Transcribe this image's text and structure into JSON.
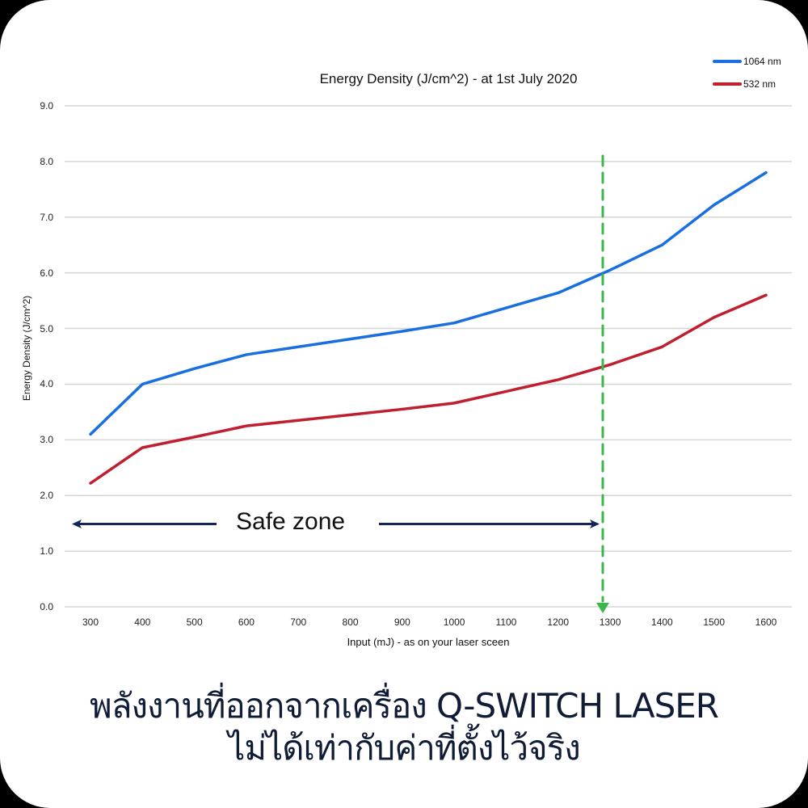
{
  "chart_data": {
    "type": "line",
    "title": "Energy Density (J/cm^2) - at 1st July 2020",
    "xlabel": "Input (mJ) - as on your laser sceen",
    "ylabel": "Energy Density (J/cm^2)",
    "x": [
      300,
      400,
      500,
      600,
      700,
      800,
      900,
      1000,
      1100,
      1200,
      1300,
      1400,
      1500,
      1600
    ],
    "categories": [
      "300",
      "400",
      "500",
      "600",
      "700",
      "800",
      "900",
      "1000",
      "1100",
      "1200",
      "1300",
      "1400",
      "1500",
      "1600"
    ],
    "series": [
      {
        "name": "1064 nm",
        "color": "#1a6fe0",
        "values": [
          3.1,
          4.0,
          4.28,
          4.53,
          4.67,
          4.81,
          4.95,
          5.1,
          5.37,
          5.64,
          6.05,
          6.5,
          7.22,
          7.8
        ]
      },
      {
        "name": "532 nm",
        "color": "#bf1f2e",
        "values": [
          2.22,
          2.86,
          3.05,
          3.25,
          3.35,
          3.45,
          3.55,
          3.66,
          3.87,
          4.08,
          4.35,
          4.67,
          5.2,
          5.6
        ]
      }
    ],
    "ylim": [
      0,
      9
    ],
    "yticks": [
      "0.0",
      "1.0",
      "2.0",
      "3.0",
      "4.0",
      "5.0",
      "6.0",
      "7.0",
      "8.0",
      "9.0"
    ],
    "grid": true,
    "legend_position": "top-right",
    "annotations": [
      {
        "type": "vertical-dashed-arrow",
        "x": 1290,
        "color": "#3cb54a"
      },
      {
        "type": "double-arrow",
        "text": "Safe zone",
        "x_from": 270,
        "x_to": 1290,
        "y": 1.5,
        "color": "#14235a"
      }
    ]
  },
  "legend": {
    "items": [
      {
        "label": "1064 nm",
        "color": "#1a6fe0"
      },
      {
        "label": "532 nm",
        "color": "#bf1f2e"
      }
    ]
  },
  "annotation": {
    "safe_zone_label": "Safe zone"
  },
  "headline": {
    "line1": "พลังงานที่ออกจากเครื่อง Q-SWITCH LASER",
    "line2": "ไม่ได้เท่ากับค่าที่ตั้งไว้จริง"
  }
}
